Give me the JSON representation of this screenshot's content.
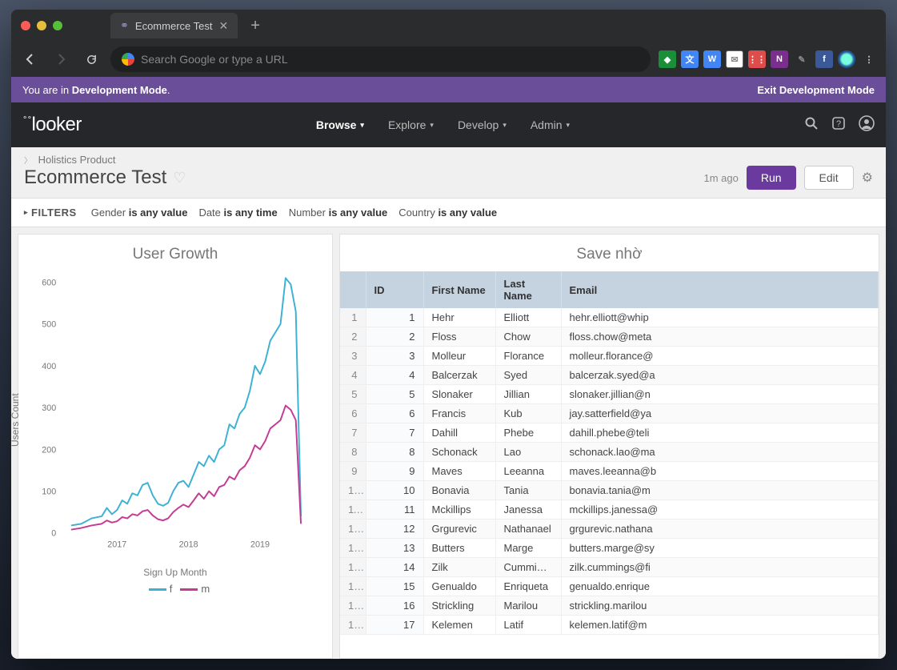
{
  "browser": {
    "tab_title": "Ecommerce Test",
    "url_placeholder": "Search Google or type a URL"
  },
  "banner": {
    "prefix": "You are in ",
    "mode": "Development Mode",
    "exit": "Exit Development Mode"
  },
  "nav": {
    "logo": "looker",
    "links": [
      "Browse",
      "Explore",
      "Develop",
      "Admin"
    ]
  },
  "breadcrumb": "Holistics Product",
  "page_title": "Ecommerce Test",
  "timestamp": "1m ago",
  "run_label": "Run",
  "edit_label": "Edit",
  "filters": {
    "label": "FILTERS",
    "items": [
      {
        "field": "Gender",
        "val": "is any value"
      },
      {
        "field": "Date",
        "val": "is any time"
      },
      {
        "field": "Number",
        "val": "is any value"
      },
      {
        "field": "Country",
        "val": "is any value"
      }
    ]
  },
  "chart": {
    "title": "User Growth",
    "ylabel": "Users Count",
    "xlabel": "Sign Up Month",
    "ylim": [
      0,
      600
    ],
    "ytick_step": 100,
    "xticks": [
      "2017",
      "2018",
      "2019"
    ],
    "xtick_positions": [
      0.22,
      0.5,
      0.78
    ],
    "series": [
      {
        "name": "f",
        "color": "#3db1d4",
        "width": 2,
        "points": [
          [
            0.04,
            18
          ],
          [
            0.08,
            22
          ],
          [
            0.12,
            35
          ],
          [
            0.16,
            40
          ],
          [
            0.18,
            60
          ],
          [
            0.2,
            45
          ],
          [
            0.22,
            55
          ],
          [
            0.24,
            78
          ],
          [
            0.26,
            70
          ],
          [
            0.28,
            95
          ],
          [
            0.3,
            90
          ],
          [
            0.32,
            115
          ],
          [
            0.34,
            120
          ],
          [
            0.36,
            90
          ],
          [
            0.38,
            70
          ],
          [
            0.4,
            65
          ],
          [
            0.42,
            72
          ],
          [
            0.44,
            100
          ],
          [
            0.46,
            120
          ],
          [
            0.48,
            125
          ],
          [
            0.5,
            110
          ],
          [
            0.52,
            140
          ],
          [
            0.54,
            170
          ],
          [
            0.56,
            160
          ],
          [
            0.58,
            185
          ],
          [
            0.6,
            170
          ],
          [
            0.62,
            200
          ],
          [
            0.64,
            210
          ],
          [
            0.66,
            260
          ],
          [
            0.68,
            250
          ],
          [
            0.7,
            285
          ],
          [
            0.72,
            300
          ],
          [
            0.74,
            340
          ],
          [
            0.76,
            400
          ],
          [
            0.78,
            380
          ],
          [
            0.8,
            410
          ],
          [
            0.82,
            460
          ],
          [
            0.84,
            480
          ],
          [
            0.86,
            500
          ],
          [
            0.88,
            610
          ],
          [
            0.9,
            595
          ],
          [
            0.92,
            530
          ],
          [
            0.94,
            40
          ]
        ]
      },
      {
        "name": "m",
        "color": "#c53a92",
        "width": 2,
        "points": [
          [
            0.04,
            8
          ],
          [
            0.08,
            12
          ],
          [
            0.12,
            18
          ],
          [
            0.16,
            22
          ],
          [
            0.18,
            30
          ],
          [
            0.2,
            25
          ],
          [
            0.22,
            28
          ],
          [
            0.24,
            38
          ],
          [
            0.26,
            35
          ],
          [
            0.28,
            45
          ],
          [
            0.3,
            42
          ],
          [
            0.32,
            52
          ],
          [
            0.34,
            55
          ],
          [
            0.36,
            42
          ],
          [
            0.38,
            33
          ],
          [
            0.4,
            30
          ],
          [
            0.42,
            35
          ],
          [
            0.44,
            50
          ],
          [
            0.46,
            60
          ],
          [
            0.48,
            68
          ],
          [
            0.5,
            62
          ],
          [
            0.52,
            78
          ],
          [
            0.54,
            95
          ],
          [
            0.56,
            82
          ],
          [
            0.58,
            100
          ],
          [
            0.6,
            88
          ],
          [
            0.62,
            110
          ],
          [
            0.64,
            115
          ],
          [
            0.66,
            135
          ],
          [
            0.68,
            128
          ],
          [
            0.7,
            150
          ],
          [
            0.72,
            160
          ],
          [
            0.74,
            180
          ],
          [
            0.76,
            210
          ],
          [
            0.78,
            200
          ],
          [
            0.8,
            220
          ],
          [
            0.82,
            250
          ],
          [
            0.84,
            260
          ],
          [
            0.86,
            270
          ],
          [
            0.88,
            305
          ],
          [
            0.9,
            295
          ],
          [
            0.92,
            270
          ],
          [
            0.94,
            22
          ]
        ]
      }
    ]
  },
  "table": {
    "title": "Save nhờ",
    "columns": [
      "ID",
      "First Name",
      "Last Name",
      "Email"
    ],
    "rows": [
      [
        1,
        "Hehr",
        "Elliott",
        "hehr.elliott@whip"
      ],
      [
        2,
        "Floss",
        "Chow",
        "floss.chow@meta"
      ],
      [
        3,
        "Molleur",
        "Florance",
        "molleur.florance@"
      ],
      [
        4,
        "Balcerzak",
        "Syed",
        "balcerzak.syed@a"
      ],
      [
        5,
        "Slonaker",
        "Jillian",
        "slonaker.jillian@n"
      ],
      [
        6,
        "Francis",
        "Kub",
        "jay.satterfield@ya"
      ],
      [
        7,
        "Dahill",
        "Phebe",
        "dahill.phebe@teli"
      ],
      [
        8,
        "Schonack",
        "Lao",
        "schonack.lao@ma"
      ],
      [
        9,
        "Maves",
        "Leeanna",
        "maves.leeanna@b"
      ],
      [
        10,
        "Bonavia",
        "Tania",
        "bonavia.tania@m"
      ],
      [
        11,
        "Mckillips",
        "Janessa",
        "mckillips.janessa@"
      ],
      [
        12,
        "Grgurevic",
        "Nathanael",
        "grgurevic.nathana"
      ],
      [
        13,
        "Butters",
        "Marge",
        "butters.marge@sy"
      ],
      [
        14,
        "Zilk",
        "Cummings",
        "zilk.cummings@fi"
      ],
      [
        15,
        "Genualdo",
        "Enriqueta",
        "genualdo.enrique"
      ],
      [
        16,
        "Strickling",
        "Marilou",
        "strickling.marilou"
      ],
      [
        17,
        "Kelemen",
        "Latif",
        "kelemen.latif@m"
      ]
    ]
  }
}
